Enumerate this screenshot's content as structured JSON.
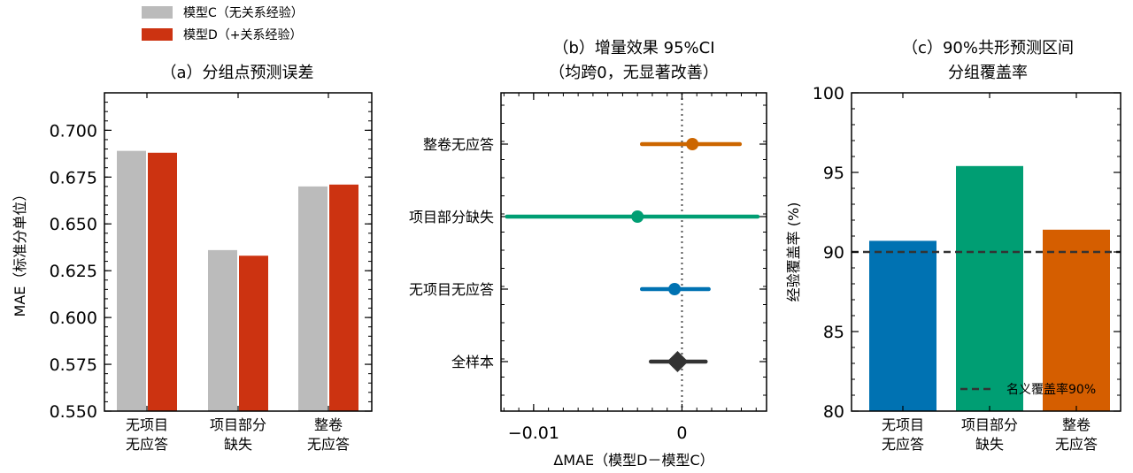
{
  "legend": {
    "entries": [
      {
        "label": "模型C（无关系经验）",
        "color": "#bbbbbb"
      },
      {
        "label": "模型D（+关系经验）",
        "color": "#cc3311"
      }
    ]
  },
  "chart_data": [
    {
      "type": "bar",
      "title": "（a）分组点预测误差",
      "xlabel": "",
      "ylabel": "MAE（标准分单位）",
      "categories": [
        [
          "无项目",
          "无应答"
        ],
        [
          "项目部分",
          "缺失"
        ],
        [
          "整卷",
          "无应答"
        ]
      ],
      "series": [
        {
          "name": "模型C（无关系经验）",
          "color": "#bbbbbb",
          "values": [
            0.689,
            0.636,
            0.67
          ]
        },
        {
          "name": "模型D（+关系经验）",
          "color": "#cc3311",
          "values": [
            0.688,
            0.633,
            0.671
          ]
        }
      ],
      "ylim": [
        0.55,
        0.72
      ],
      "yticks": [
        "0.550",
        "0.575",
        "0.600",
        "0.625",
        "0.650",
        "0.675",
        "0.700"
      ],
      "grid": false
    },
    {
      "type": "scatter",
      "title": "（b）增量效果 95%CI",
      "subtitle": "（均跨0，无显著改善）",
      "xlabel": "ΔMAE（模型D－模型C）",
      "ylabel": "",
      "categories": [
        "整卷无应答",
        "项目部分缺失",
        "无项目无应答",
        "全样本"
      ],
      "points": [
        {
          "label": "整卷无应答",
          "estimate": 0.0007,
          "ci": [
            -0.0027,
            0.0039
          ],
          "color": "#cc6600",
          "marker": "circle"
        },
        {
          "label": "项目部分缺失",
          "estimate": -0.003,
          "ci": [
            -0.0118,
            0.0051
          ],
          "color": "#009e73",
          "marker": "circle"
        },
        {
          "label": "无项目无应答",
          "estimate": -0.0005,
          "ci": [
            -0.0027,
            0.0018
          ],
          "color": "#0072b2",
          "marker": "circle"
        },
        {
          "label": "全样本",
          "estimate": -0.0003,
          "ci": [
            -0.0021,
            0.0016
          ],
          "color": "#333333",
          "marker": "diamond"
        }
      ],
      "xlim": [
        -0.0122,
        0.0057
      ],
      "xticks": [
        {
          "value": -0.01,
          "label": "−0.01"
        },
        {
          "value": 0,
          "label": "0"
        }
      ],
      "reference_line": 0,
      "grid": false
    },
    {
      "type": "bar",
      "title": "（c）90%共形预测区间",
      "subtitle": "分组覆盖率",
      "xlabel": "",
      "ylabel": "经验覆盖率 (%)",
      "categories": [
        [
          "无项目",
          "无应答"
        ],
        [
          "项目部分",
          "缺失"
        ],
        [
          "整卷",
          "无应答"
        ]
      ],
      "values": [
        90.7,
        95.4,
        91.4
      ],
      "colors": [
        "#0072b2",
        "#009e73",
        "#d55e00"
      ],
      "ylim": [
        80,
        100
      ],
      "yticks": [
        "80",
        "85",
        "90",
        "95",
        "100"
      ],
      "reference_line": {
        "value": 90,
        "label": "名义覆盖率90%"
      },
      "legend_position": "lower-right",
      "grid": false
    }
  ]
}
